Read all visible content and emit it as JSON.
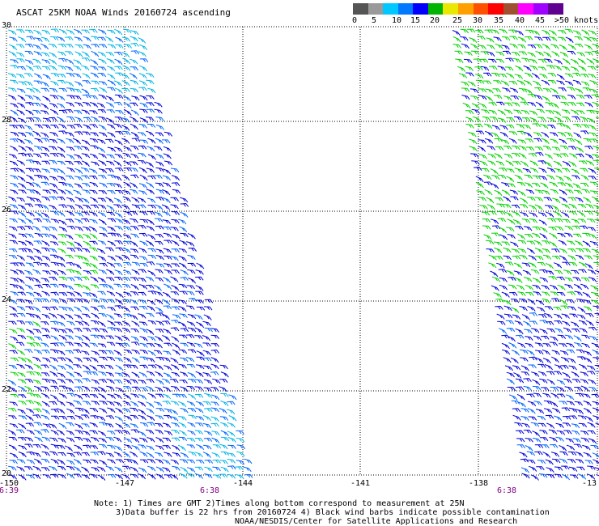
{
  "title": "ASCAT 25KM NOAA Winds 20160724 ascending",
  "legend": {
    "colors": [
      "#555555",
      "#9a9a9a",
      "#00c8ff",
      "#0078ff",
      "#0000ff",
      "#00b400",
      "#e8e800",
      "#ffa000",
      "#ff5000",
      "#ff0000",
      "#a05030",
      "#ff00ff",
      "#a000ff",
      "#600090"
    ],
    "labels": [
      "0",
      "5",
      "10",
      "15",
      "20",
      "25",
      "30",
      "35",
      "40",
      "45",
      ">50 knots"
    ]
  },
  "lat_labels": [
    "30",
    "28",
    "26",
    "24",
    "22",
    "20"
  ],
  "lon_labels": [
    "-150",
    "-147",
    "-144",
    "-141",
    "-138",
    "-13"
  ],
  "time_labels": [
    "6:39",
    "6:38",
    "6:38"
  ],
  "notes": {
    "line1": "Note: 1) Times are GMT 2)Times along bottom correspond to measurement at 25N",
    "line2": "3)Data buffer is 22 hrs from 20160724 4) Black wind barbs indicate possible contamination",
    "line3": "NOAA/NESDIS/Center for Satellite Applications and Research"
  },
  "swaths": [
    {
      "name": "west",
      "colors": [
        "#00b4e6",
        "#0064ff",
        "#0000dc",
        "#00d200"
      ]
    },
    {
      "name": "east",
      "colors": [
        "#00d200",
        "#0000dc",
        "#0064ff"
      ]
    }
  ]
}
